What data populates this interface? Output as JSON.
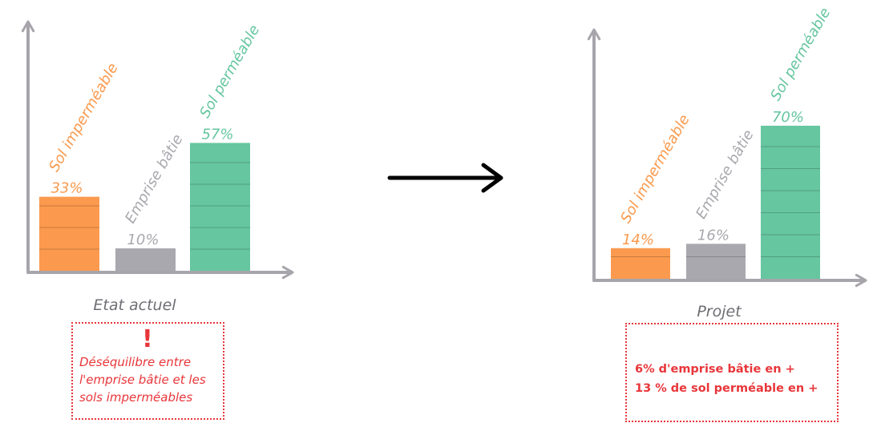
{
  "colors": {
    "impermeable": "#fb9a4e",
    "emprise": "#a9a8ae",
    "permeable": "#66c6a0",
    "axis": "#a7a5ab",
    "alert": "#e8363a"
  },
  "chart_data": [
    {
      "type": "bar",
      "caption": "Etat actuel",
      "categories": [
        "Sol imperméable",
        "Emprise bâtie",
        "Sol perméable"
      ],
      "values": [
        33,
        10,
        57
      ],
      "value_labels": [
        "33%",
        "10%",
        "57%"
      ],
      "unit": "%",
      "ylim": [
        0,
        100
      ]
    },
    {
      "type": "bar",
      "caption": "Projet",
      "categories": [
        "Sol imperméable",
        "Emprise bâtie",
        "Sol perméable"
      ],
      "values": [
        14,
        16,
        70
      ],
      "value_labels": [
        "14%",
        "16%",
        "70%"
      ],
      "unit": "%",
      "ylim": [
        0,
        100
      ]
    }
  ],
  "arrow_icon": "right-arrow-icon",
  "notes": {
    "left": {
      "icon": "exclamation-icon",
      "mark": "!",
      "lines": [
        "Déséquilibre entre",
        "l'emprise bâtie et les",
        "sols imperméables"
      ]
    },
    "right": {
      "lines": [
        "6% d'emprise bâtie en +",
        "13 % de sol perméable en +"
      ]
    }
  }
}
